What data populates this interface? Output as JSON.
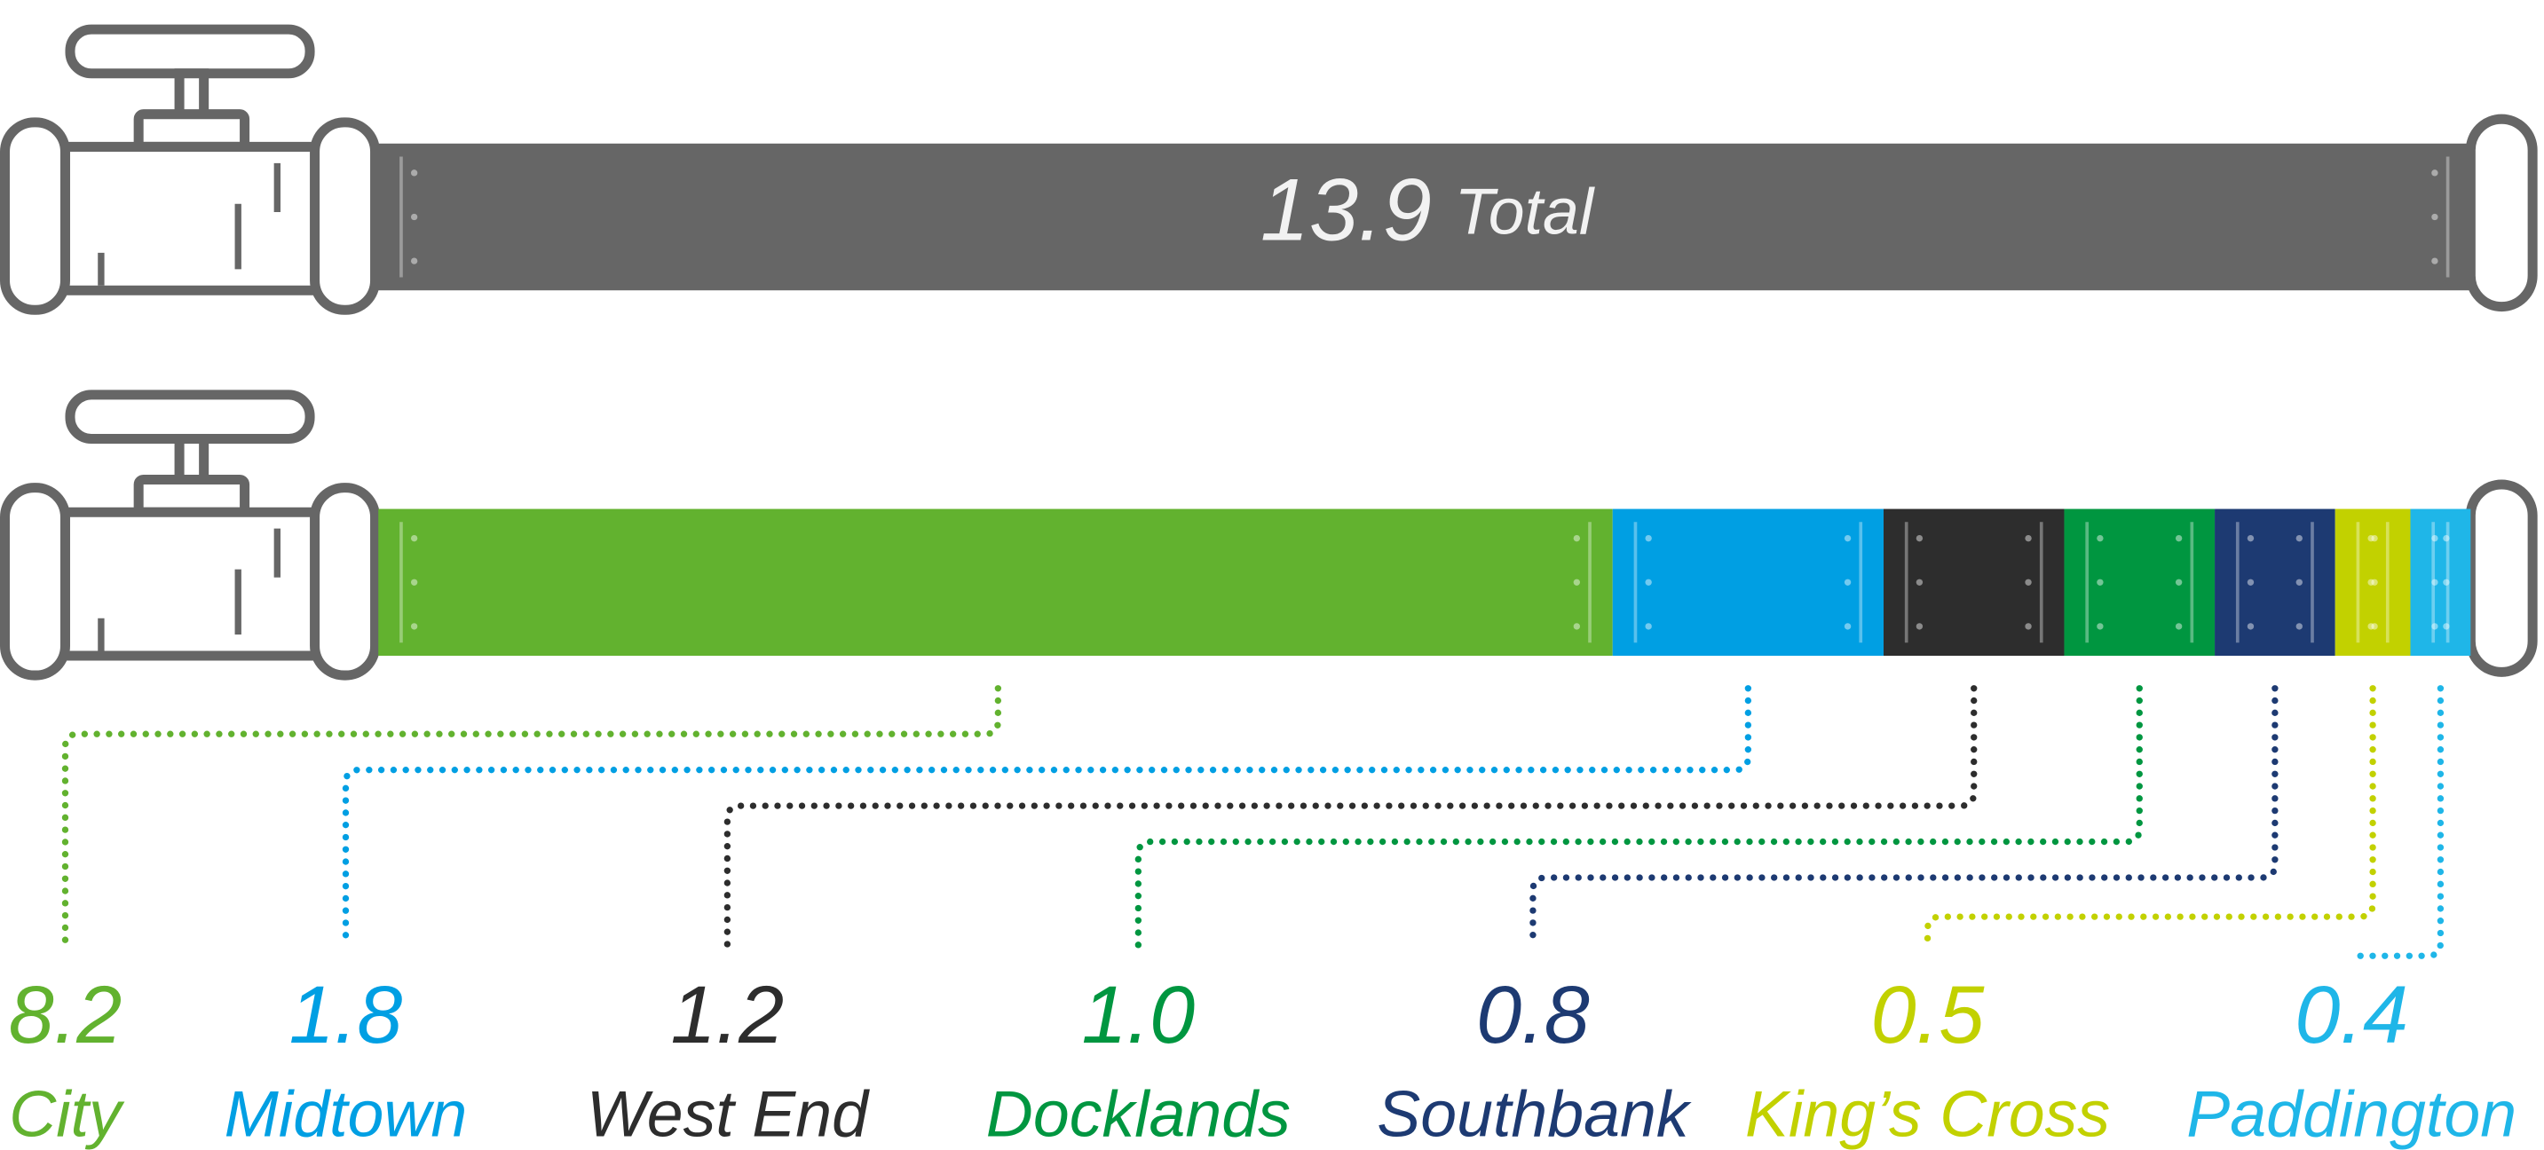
{
  "chart_data": {
    "type": "stacked-pipe",
    "total": {
      "value": 13.9,
      "label": "Total"
    },
    "categories": [
      "City",
      "Midtown",
      "West End",
      "Docklands",
      "Southbank",
      "King’s Cross",
      "Paddington"
    ],
    "values": [
      8.2,
      1.8,
      1.2,
      1.0,
      0.8,
      0.5,
      0.4
    ],
    "value_labels": [
      "8.2",
      "1.8",
      "1.2",
      "1.0",
      "0.8",
      "0.5",
      "0.4"
    ],
    "colors": [
      "#62b22f",
      "#009fe3",
      "#2d2d2d",
      "#009640",
      "#1d3a72",
      "#c2d100",
      "#1fb6e8"
    ],
    "total_color": "#666666"
  }
}
